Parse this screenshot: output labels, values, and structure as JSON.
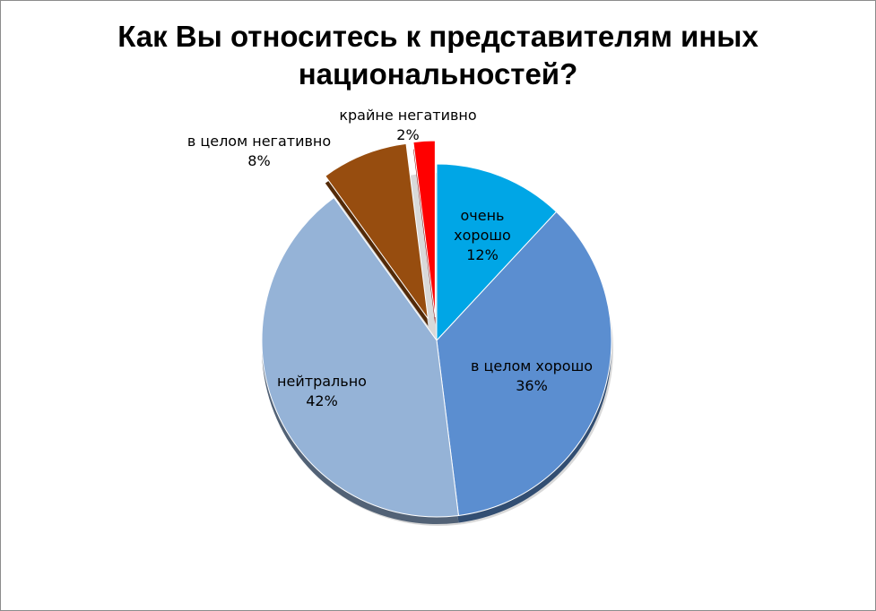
{
  "title_lines": [
    "Как Вы относитесь к представителям иных",
    "национальностей?"
  ],
  "chart_data": {
    "type": "pie",
    "title": "Как Вы относитесь к представителям иных национальностей?",
    "legend": "none",
    "slices": [
      {
        "label_lines": [
          "очень",
          "хорошо"
        ],
        "value": 12,
        "value_label": "12%",
        "color": "#00A6E6",
        "exploded": false
      },
      {
        "label_lines": [
          "в целом хорошо"
        ],
        "value": 36,
        "value_label": "36%",
        "color": "#5B8ED0",
        "exploded": false
      },
      {
        "label_lines": [
          "нейтрально"
        ],
        "value": 42,
        "value_label": "42%",
        "color": "#95B3D7",
        "exploded": false
      },
      {
        "label_lines": [
          "в целом негативно"
        ],
        "value": 8,
        "value_label": "8%",
        "color": "#974D0F",
        "exploded": true
      },
      {
        "label_lines": [
          "крайне негативно"
        ],
        "value": 2,
        "value_label": "2%",
        "color": "#FF0000",
        "exploded": true
      }
    ]
  }
}
